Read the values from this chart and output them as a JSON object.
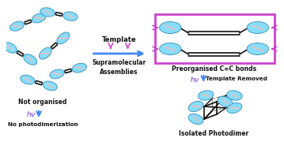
{
  "bg_color": "#ffffff",
  "arrow_color_p": "#cc44cc",
  "bond_color": "#111111",
  "ellipse_face": "#88ddff",
  "ellipse_stripe": "#ffbbaa",
  "text_color": "#111111",
  "hv_color": "#6633cc",
  "hv_arrow_color": "#4488ee",
  "label_not_organised": "Not organised",
  "label_no_photo": "No photodimerization",
  "label_template": "Template",
  "label_supra": "Supramolecular\nAssemblies",
  "label_preorg": "Preorganised C=C bonds",
  "label_hv_template": "Template Removed",
  "label_isolated": "Isolated Photodimer"
}
